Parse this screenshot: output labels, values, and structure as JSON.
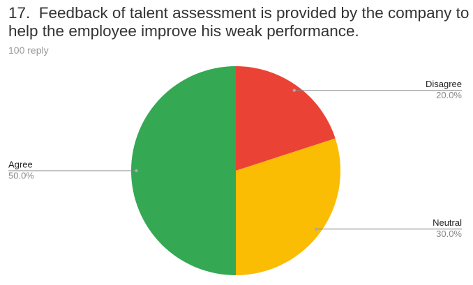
{
  "chart_data": {
    "type": "pie",
    "title": "17.  Feedback of talent assessment is provided by the company to help the employee improve his weak performance.",
    "subtitle": "100 reply",
    "categories": [
      "Disagree",
      "Neutral",
      "Agree"
    ],
    "values": [
      20,
      30,
      50
    ],
    "value_labels": [
      "20.0%",
      "30.0%",
      "50.0%"
    ],
    "colors": [
      "#ea4335",
      "#fbbc04",
      "#34a853"
    ]
  }
}
